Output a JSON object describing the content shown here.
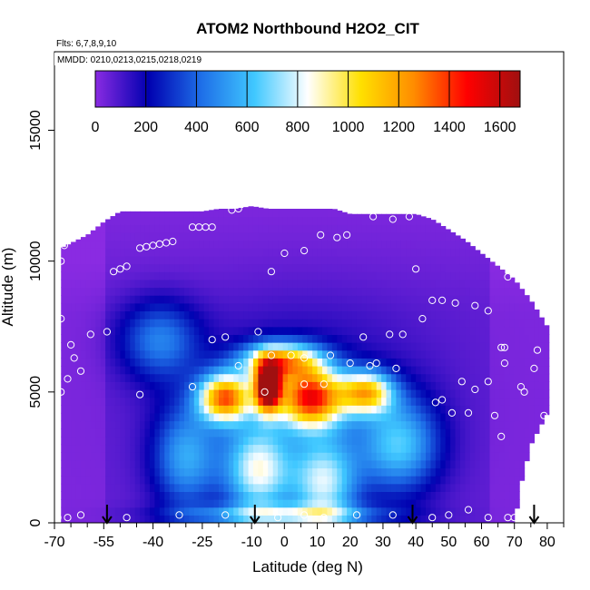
{
  "chart_data": {
    "type": "heatmap",
    "title": "ATOM2 Northbound H2O2_CIT",
    "annotations": [
      "Flts: 6,7,8,9,10",
      "MMDD: 0210,0213,0215,0218,0219"
    ],
    "xlabel": "Latitude (deg N)",
    "ylabel": "Altitude (m)",
    "xlim": [
      -70,
      85
    ],
    "ylim": [
      0,
      18000
    ],
    "x_ticks": [
      "-70",
      "-55",
      "-40",
      "-25",
      "-10",
      "0",
      "10",
      "20",
      "30",
      "40",
      "50",
      "60",
      "70",
      "80"
    ],
    "x_tick_values": [
      -70,
      -55,
      -40,
      -25,
      -10,
      0,
      10,
      20,
      30,
      40,
      50,
      60,
      70,
      80
    ],
    "x_minor_ticks": [
      -65,
      -60,
      -50,
      -45,
      -35,
      -30,
      -20,
      -15,
      -5,
      5,
      15,
      25,
      35,
      45,
      55,
      65,
      75,
      85
    ],
    "y_ticks": [
      "0",
      "5000",
      "10000",
      "15000"
    ],
    "y_tick_values": [
      0,
      5000,
      10000,
      15000
    ],
    "colorbar": {
      "ticks": [
        "0",
        "200",
        "400",
        "600",
        "800",
        "1000",
        "1200",
        "1400",
        "1600"
      ],
      "tick_values": [
        0,
        200,
        400,
        600,
        800,
        1000,
        1200,
        1400,
        1600
      ],
      "range": [
        0,
        1680
      ],
      "colors": [
        "#8a2be2",
        "#0000b0",
        "#1e6fe8",
        "#40c8ff",
        "#ffffff",
        "#ffe000",
        "#ff8c00",
        "#ff0000",
        "#a01010"
      ]
    },
    "field": {
      "lat_range": [
        -68,
        80
      ],
      "alt_range": [
        0,
        12000
      ],
      "top_alt_profile": {
        "lat": [
          -68,
          -60,
          -55,
          -50,
          -45,
          -40,
          -35,
          -30,
          -25,
          -20,
          -15,
          -10,
          -5,
          0,
          5,
          10,
          15,
          20,
          25,
          30,
          35,
          40,
          45,
          50,
          55,
          60,
          65,
          70,
          75,
          80
        ],
        "alt": [
          10500,
          11000,
          11500,
          11900,
          11900,
          11900,
          11900,
          11900,
          11900,
          12000,
          12000,
          12100,
          12000,
          12000,
          12000,
          12000,
          12000,
          11800,
          11800,
          11800,
          11800,
          11800,
          11600,
          11200,
          10800,
          10300,
          9800,
          9300,
          8500,
          7500
        ]
      },
      "bottom_alt_profile": {
        "lat": [
          -68,
          70,
          72,
          75,
          80
        ],
        "alt": [
          0,
          0,
          1500,
          3000,
          4200
        ]
      }
    },
    "hotspots": [
      {
        "lat": -5,
        "alt": 5200,
        "value": 1550,
        "spread_lat": 4,
        "spread_alt": 900
      },
      {
        "lat": 8,
        "alt": 4800,
        "value": 1250,
        "spread_lat": 10,
        "spread_alt": 1100
      },
      {
        "lat": -18,
        "alt": 4800,
        "value": 1150,
        "spread_lat": 8,
        "spread_alt": 900
      },
      {
        "lat": 25,
        "alt": 5000,
        "value": 900,
        "spread_lat": 8,
        "spread_alt": 800
      },
      {
        "lat": -1,
        "alt": 6200,
        "value": 950,
        "spread_lat": 12,
        "spread_alt": 700
      },
      {
        "lat": -8,
        "alt": 2000,
        "value": 700,
        "spread_lat": 10,
        "spread_alt": 1800
      },
      {
        "lat": 12,
        "alt": 1500,
        "value": 650,
        "spread_lat": 10,
        "spread_alt": 1800
      },
      {
        "lat": 35,
        "alt": 3000,
        "value": 520,
        "spread_lat": 12,
        "spread_alt": 1800
      },
      {
        "lat": -30,
        "alt": 2500,
        "value": 450,
        "spread_lat": 10,
        "spread_alt": 2000
      },
      {
        "lat": -38,
        "alt": 7000,
        "value": 380,
        "spread_lat": 12,
        "spread_alt": 1500
      },
      {
        "lat": 0,
        "alt": 300,
        "value": 500,
        "spread_lat": 30,
        "spread_alt": 400
      }
    ],
    "arrows_lat": [
      -54,
      -9,
      39,
      76
    ],
    "sample_points": [
      {
        "lat": -68,
        "alt": 10000
      },
      {
        "lat": -67,
        "alt": 10600
      },
      {
        "lat": -66,
        "alt": 11300
      },
      {
        "lat": -62,
        "alt": 11700
      },
      {
        "lat": -60,
        "alt": 11900
      },
      {
        "lat": -68,
        "alt": 7800
      },
      {
        "lat": -65,
        "alt": 6800
      },
      {
        "lat": -64,
        "alt": 6300
      },
      {
        "lat": -62,
        "alt": 5800
      },
      {
        "lat": -66,
        "alt": 5500
      },
      {
        "lat": -68,
        "alt": 5000
      },
      {
        "lat": -59,
        "alt": 7200
      },
      {
        "lat": -54,
        "alt": 7300
      },
      {
        "lat": -44,
        "alt": 4900
      },
      {
        "lat": -69,
        "alt": 200
      },
      {
        "lat": -66,
        "alt": 200
      },
      {
        "lat": -62,
        "alt": 300
      },
      {
        "lat": -48,
        "alt": 200
      },
      {
        "lat": -32,
        "alt": 300
      },
      {
        "lat": -18,
        "alt": 300
      },
      {
        "lat": -2,
        "alt": 200
      },
      {
        "lat": 6,
        "alt": 300
      },
      {
        "lat": 12,
        "alt": 200
      },
      {
        "lat": 22,
        "alt": 300
      },
      {
        "lat": 33,
        "alt": 300
      },
      {
        "lat": 45,
        "alt": 200
      },
      {
        "lat": 56,
        "alt": 500
      },
      {
        "lat": 68,
        "alt": 200
      },
      {
        "lat": 74,
        "alt": 300
      },
      {
        "lat": -52,
        "alt": 9600
      },
      {
        "lat": -50,
        "alt": 9700
      },
      {
        "lat": -48,
        "alt": 9800
      },
      {
        "lat": -44,
        "alt": 10500
      },
      {
        "lat": -42,
        "alt": 10550
      },
      {
        "lat": -40,
        "alt": 10600
      },
      {
        "lat": -38,
        "alt": 10650
      },
      {
        "lat": -36,
        "alt": 10700
      },
      {
        "lat": -34,
        "alt": 10750
      },
      {
        "lat": -28,
        "alt": 11300
      },
      {
        "lat": -26,
        "alt": 11300
      },
      {
        "lat": -24,
        "alt": 11300
      },
      {
        "lat": -22,
        "alt": 11300
      },
      {
        "lat": -16,
        "alt": 11950
      },
      {
        "lat": -14,
        "alt": 12000
      },
      {
        "lat": -4,
        "alt": 9600
      },
      {
        "lat": 0,
        "alt": 10300
      },
      {
        "lat": 6,
        "alt": 10400
      },
      {
        "lat": 11,
        "alt": 11000
      },
      {
        "lat": 16,
        "alt": 10900
      },
      {
        "lat": 19,
        "alt": 11000
      },
      {
        "lat": 27,
        "alt": 11700
      },
      {
        "lat": 33,
        "alt": 11600
      },
      {
        "lat": 38,
        "alt": 11700
      },
      {
        "lat": 40,
        "alt": 9700
      },
      {
        "lat": 45,
        "alt": 8500
      },
      {
        "lat": 48,
        "alt": 8500
      },
      {
        "lat": 52,
        "alt": 8400
      },
      {
        "lat": 58,
        "alt": 8300
      },
      {
        "lat": 62,
        "alt": 8100
      },
      {
        "lat": 42,
        "alt": 7800
      },
      {
        "lat": 68,
        "alt": 9400
      },
      {
        "lat": 74,
        "alt": 9300
      },
      {
        "lat": 80,
        "alt": 8500
      },
      {
        "lat": -22,
        "alt": 7000
      },
      {
        "lat": -18,
        "alt": 7100
      },
      {
        "lat": -8,
        "alt": 7300
      },
      {
        "lat": -4,
        "alt": 6400
      },
      {
        "lat": 2,
        "alt": 6400
      },
      {
        "lat": 6,
        "alt": 6300
      },
      {
        "lat": -14,
        "alt": 6000
      },
      {
        "lat": -28,
        "alt": 5200
      },
      {
        "lat": 14,
        "alt": 6400
      },
      {
        "lat": 20,
        "alt": 6100
      },
      {
        "lat": 26,
        "alt": 6000
      },
      {
        "lat": 32,
        "alt": 7200
      },
      {
        "lat": 36,
        "alt": 7200
      },
      {
        "lat": -6,
        "alt": 5000
      },
      {
        "lat": 6,
        "alt": 5300
      },
      {
        "lat": 12,
        "alt": 5300
      },
      {
        "lat": 24,
        "alt": 7100
      },
      {
        "lat": 28,
        "alt": 6100
      },
      {
        "lat": 34,
        "alt": 5900
      },
      {
        "lat": 46,
        "alt": 4600
      },
      {
        "lat": 48,
        "alt": 4700
      },
      {
        "lat": 51,
        "alt": 4200
      },
      {
        "lat": 54,
        "alt": 5400
      },
      {
        "lat": 56,
        "alt": 4200
      },
      {
        "lat": 58,
        "alt": 5100
      },
      {
        "lat": 62,
        "alt": 5400
      },
      {
        "lat": 66,
        "alt": 6700
      },
      {
        "lat": 67,
        "alt": 6700
      },
      {
        "lat": 67,
        "alt": 6100
      },
      {
        "lat": 64,
        "alt": 4100
      },
      {
        "lat": 66,
        "alt": 3300
      },
      {
        "lat": 72,
        "alt": 5200
      },
      {
        "lat": 73,
        "alt": 5000
      },
      {
        "lat": 76,
        "alt": 5900
      },
      {
        "lat": 77,
        "alt": 6600
      },
      {
        "lat": 79,
        "alt": 4100
      },
      {
        "lat": 62,
        "alt": 200
      },
      {
        "lat": 70,
        "alt": 200
      },
      {
        "lat": 50,
        "alt": 300
      }
    ]
  }
}
